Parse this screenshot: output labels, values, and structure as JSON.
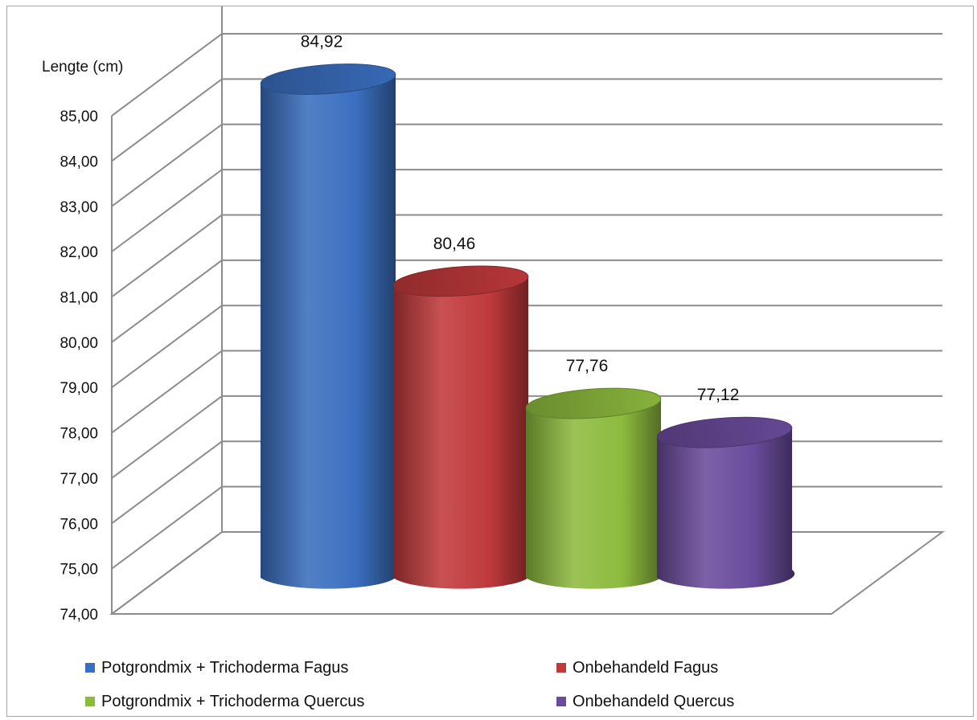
{
  "chart_data": {
    "type": "bar",
    "style": "3d-cylinder",
    "ylabel": "Lengte (cm)",
    "ylim": [
      74,
      85
    ],
    "y_ticks": [
      "74,00",
      "75,00",
      "76,00",
      "77,00",
      "78,00",
      "79,00",
      "80,00",
      "81,00",
      "82,00",
      "83,00",
      "84,00",
      "85,00"
    ],
    "grid": true,
    "legend_position": "bottom",
    "series": [
      {
        "name": "Potgrondmix + Trichoderma Fagus",
        "value": 84.92,
        "label": "84,92",
        "color": "#3a6fbf"
      },
      {
        "name": "Onbehandeld Fagus",
        "value": 80.46,
        "label": "80,46",
        "color": "#c0393b"
      },
      {
        "name": "Potgrondmix + Trichoderma Quercus",
        "value": 77.76,
        "label": "77,76",
        "color": "#8dbb3e"
      },
      {
        "name": "Onbehandeld Quercus",
        "value": 77.12,
        "label": "77,12",
        "color": "#6a4c9c"
      }
    ]
  }
}
